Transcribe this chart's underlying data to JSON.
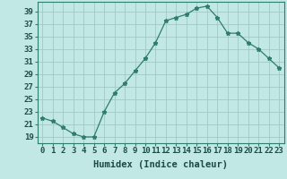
{
  "x": [
    0,
    1,
    2,
    3,
    4,
    5,
    6,
    7,
    8,
    9,
    10,
    11,
    12,
    13,
    14,
    15,
    16,
    17,
    18,
    19,
    20,
    21,
    22,
    23
  ],
  "y": [
    22,
    21.5,
    20.5,
    19.5,
    19,
    19,
    23,
    26,
    27.5,
    29.5,
    31.5,
    34,
    37.5,
    38,
    38.5,
    39.5,
    39.8,
    38,
    35.5,
    35.5,
    34,
    33,
    31.5,
    30
  ],
  "line_color": "#2e7d6e",
  "marker": "*",
  "bg_color": "#c2e8e5",
  "grid_color": "#a0c8c5",
  "xlabel": "Humidex (Indice chaleur)",
  "ylabel_ticks": [
    19,
    21,
    23,
    25,
    27,
    29,
    31,
    33,
    35,
    37,
    39
  ],
  "xlim": [
    -0.5,
    23.5
  ],
  "ylim": [
    18.0,
    40.5
  ],
  "xlabel_fontsize": 7.5,
  "tick_fontsize": 6.5
}
